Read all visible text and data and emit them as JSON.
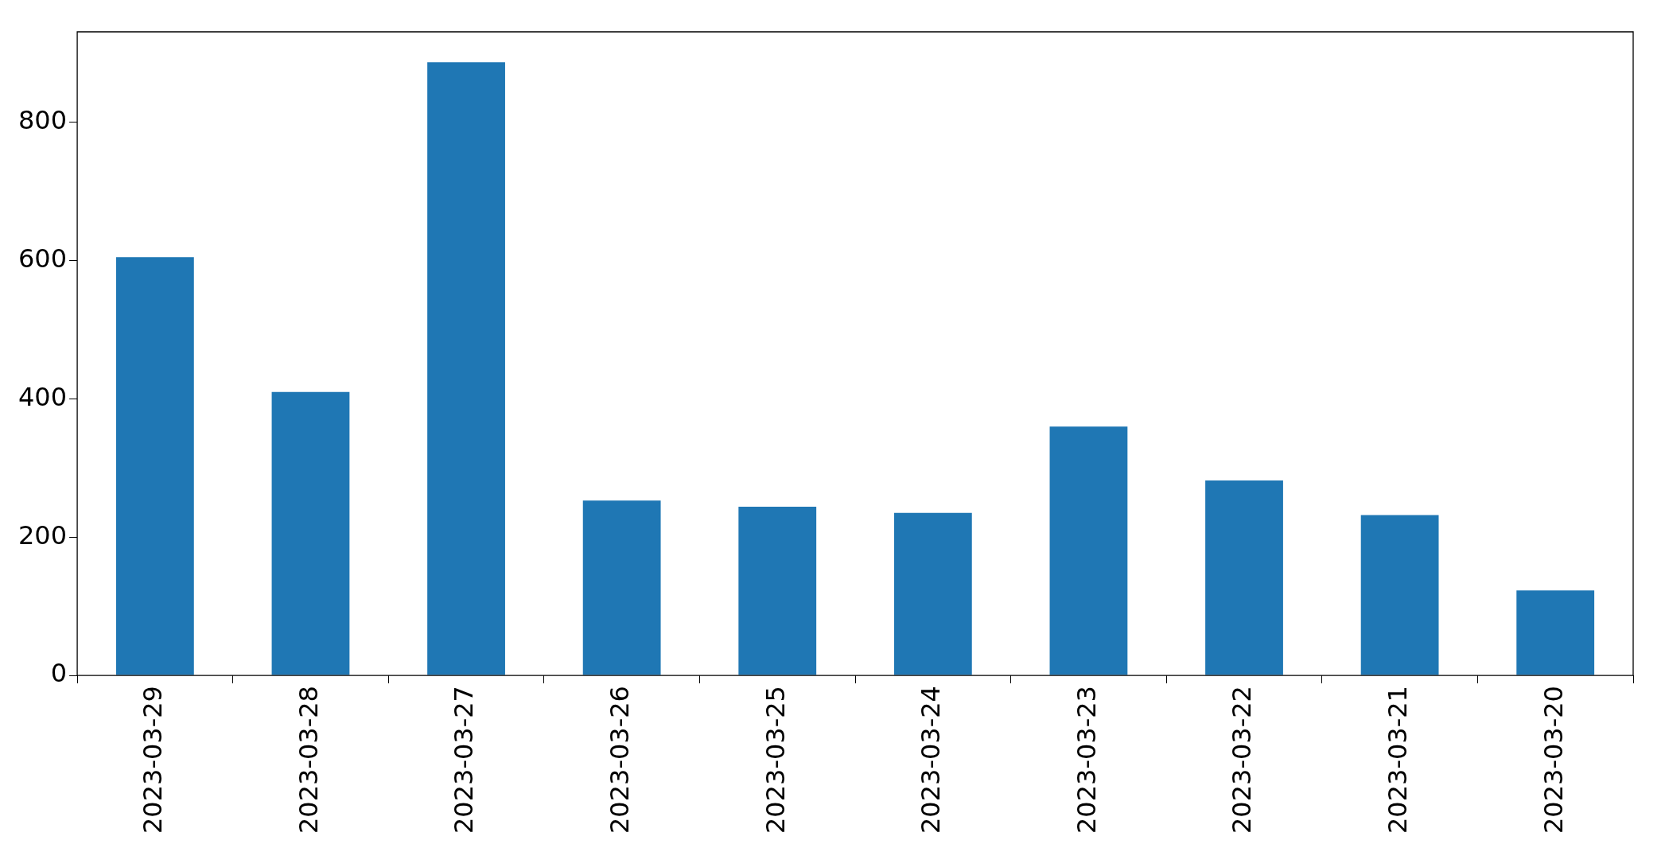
{
  "chart_data": {
    "type": "bar",
    "categories": [
      "2023-03-29",
      "2023-03-28",
      "2023-03-27",
      "2023-03-26",
      "2023-03-25",
      "2023-03-24",
      "2023-03-23",
      "2023-03-22",
      "2023-03-21",
      "2023-03-20"
    ],
    "values": [
      605,
      410,
      887,
      253,
      244,
      235,
      360,
      282,
      232,
      123
    ],
    "color": "#1f77b4",
    "ylim": [
      0,
      931
    ],
    "yticks": [
      0,
      200,
      400,
      600,
      800
    ],
    "grid": false,
    "legend": false
  }
}
